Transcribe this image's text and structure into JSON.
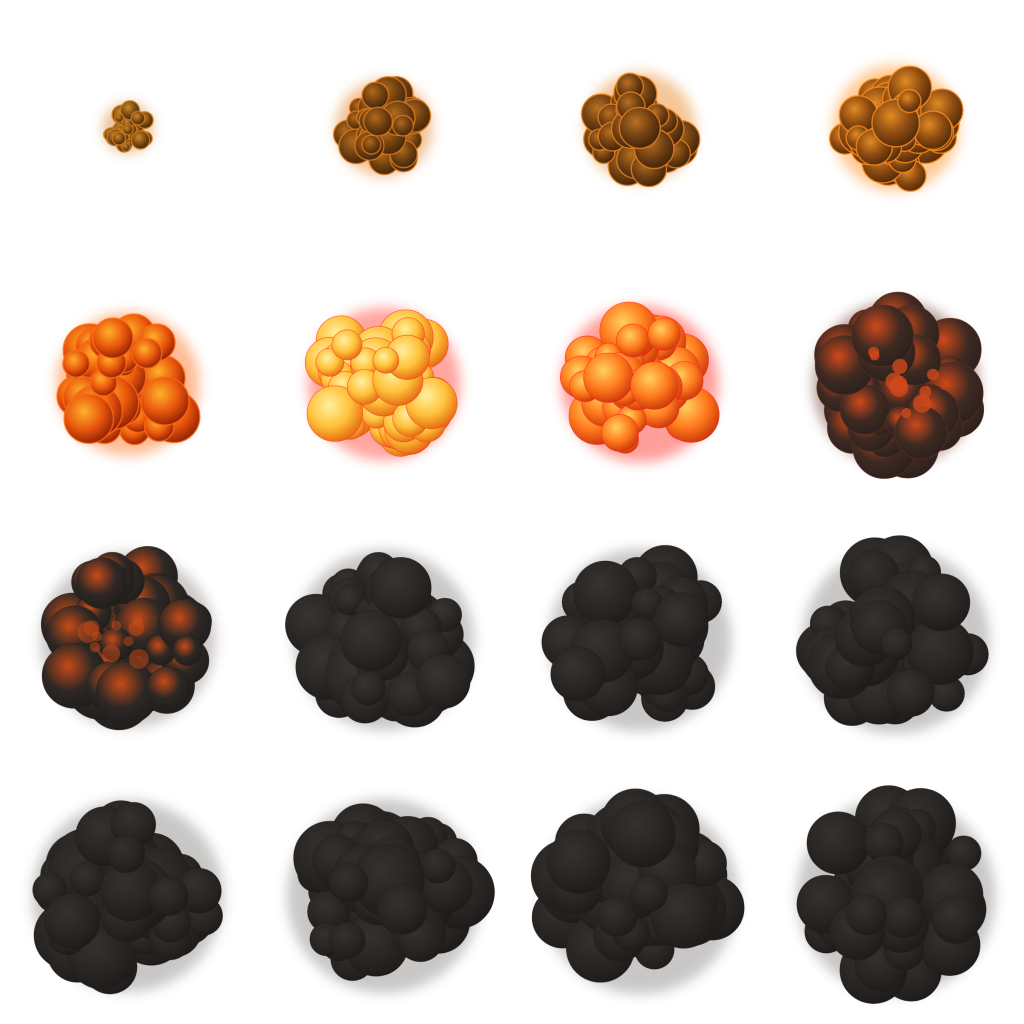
{
  "sprite_sheet": {
    "columns": 4,
    "rows": 4,
    "frame_count": 16,
    "background": "#ffffff",
    "frames": [
      {
        "index": 1,
        "stage": "spark",
        "palette": [
          "#3a2208",
          "#7a4a12",
          "#c98a2a"
        ],
        "glow": "#d07a20",
        "scale": 0.22
      },
      {
        "index": 2,
        "stage": "ignite",
        "palette": [
          "#3d2409",
          "#6e3f10",
          "#b06a1d"
        ],
        "glow": "#e07b1c",
        "scale": 0.42
      },
      {
        "index": 3,
        "stage": "ignite",
        "palette": [
          "#3a210a",
          "#6f3f12",
          "#b86f22"
        ],
        "glow": "#e8831f",
        "scale": 0.48
      },
      {
        "index": 4,
        "stage": "expand",
        "palette": [
          "#4a280b",
          "#8b4a12",
          "#e08a22"
        ],
        "glow": "#ff8c1a",
        "scale": 0.55
      },
      {
        "index": 5,
        "stage": "fireball",
        "palette": [
          "#8a1c05",
          "#e8560c",
          "#ffb02a"
        ],
        "glow": "#ff6a14",
        "scale": 0.62
      },
      {
        "index": 6,
        "stage": "peak",
        "palette": [
          "#e2640e",
          "#ffc13a",
          "#fff0a0"
        ],
        "glow": "#ff3b2a",
        "scale": 0.66
      },
      {
        "index": 7,
        "stage": "burn",
        "palette": [
          "#c8320a",
          "#ff7a1c",
          "#ffd060"
        ],
        "glow": "#ff2a20",
        "scale": 0.68
      },
      {
        "index": 8,
        "stage": "smoulder",
        "palette": [
          "#2a201c",
          "#3e2a22",
          "#d0481a"
        ],
        "glow": "#6b3020",
        "scale": 0.72
      },
      {
        "index": 9,
        "stage": "smoke",
        "palette": [
          "#1f1c1a",
          "#2d2825",
          "#c84a18"
        ],
        "glow": "#3a2a22",
        "scale": 0.76
      },
      {
        "index": 10,
        "stage": "smoke",
        "palette": [
          "#1e1c1b",
          "#2b2826",
          "#3a3430"
        ],
        "glow": "#2a2523",
        "scale": 0.78
      },
      {
        "index": 11,
        "stage": "smoke",
        "palette": [
          "#1e1c1b",
          "#2a2725",
          "#383330"
        ],
        "glow": "#2a2523",
        "scale": 0.79
      },
      {
        "index": 12,
        "stage": "smoke",
        "palette": [
          "#1d1b1a",
          "#2a2725",
          "#37322f"
        ],
        "glow": "#2a2523",
        "scale": 0.81
      },
      {
        "index": 13,
        "stage": "dissipate",
        "palette": [
          "#1d1b1a",
          "#292624",
          "#36312e"
        ],
        "glow": "#2a2523",
        "scale": 0.83
      },
      {
        "index": 14,
        "stage": "dissipate",
        "palette": [
          "#1d1b1a",
          "#292624",
          "#36312e"
        ],
        "glow": "#2a2523",
        "scale": 0.84
      },
      {
        "index": 15,
        "stage": "dissipate",
        "palette": [
          "#1d1b1a",
          "#292624",
          "#36312e"
        ],
        "glow": "#2a2523",
        "scale": 0.85
      },
      {
        "index": 16,
        "stage": "dissipate",
        "palette": [
          "#1d1b1a",
          "#292624",
          "#36312e"
        ],
        "glow": "#2a2523",
        "scale": 0.86
      }
    ]
  }
}
